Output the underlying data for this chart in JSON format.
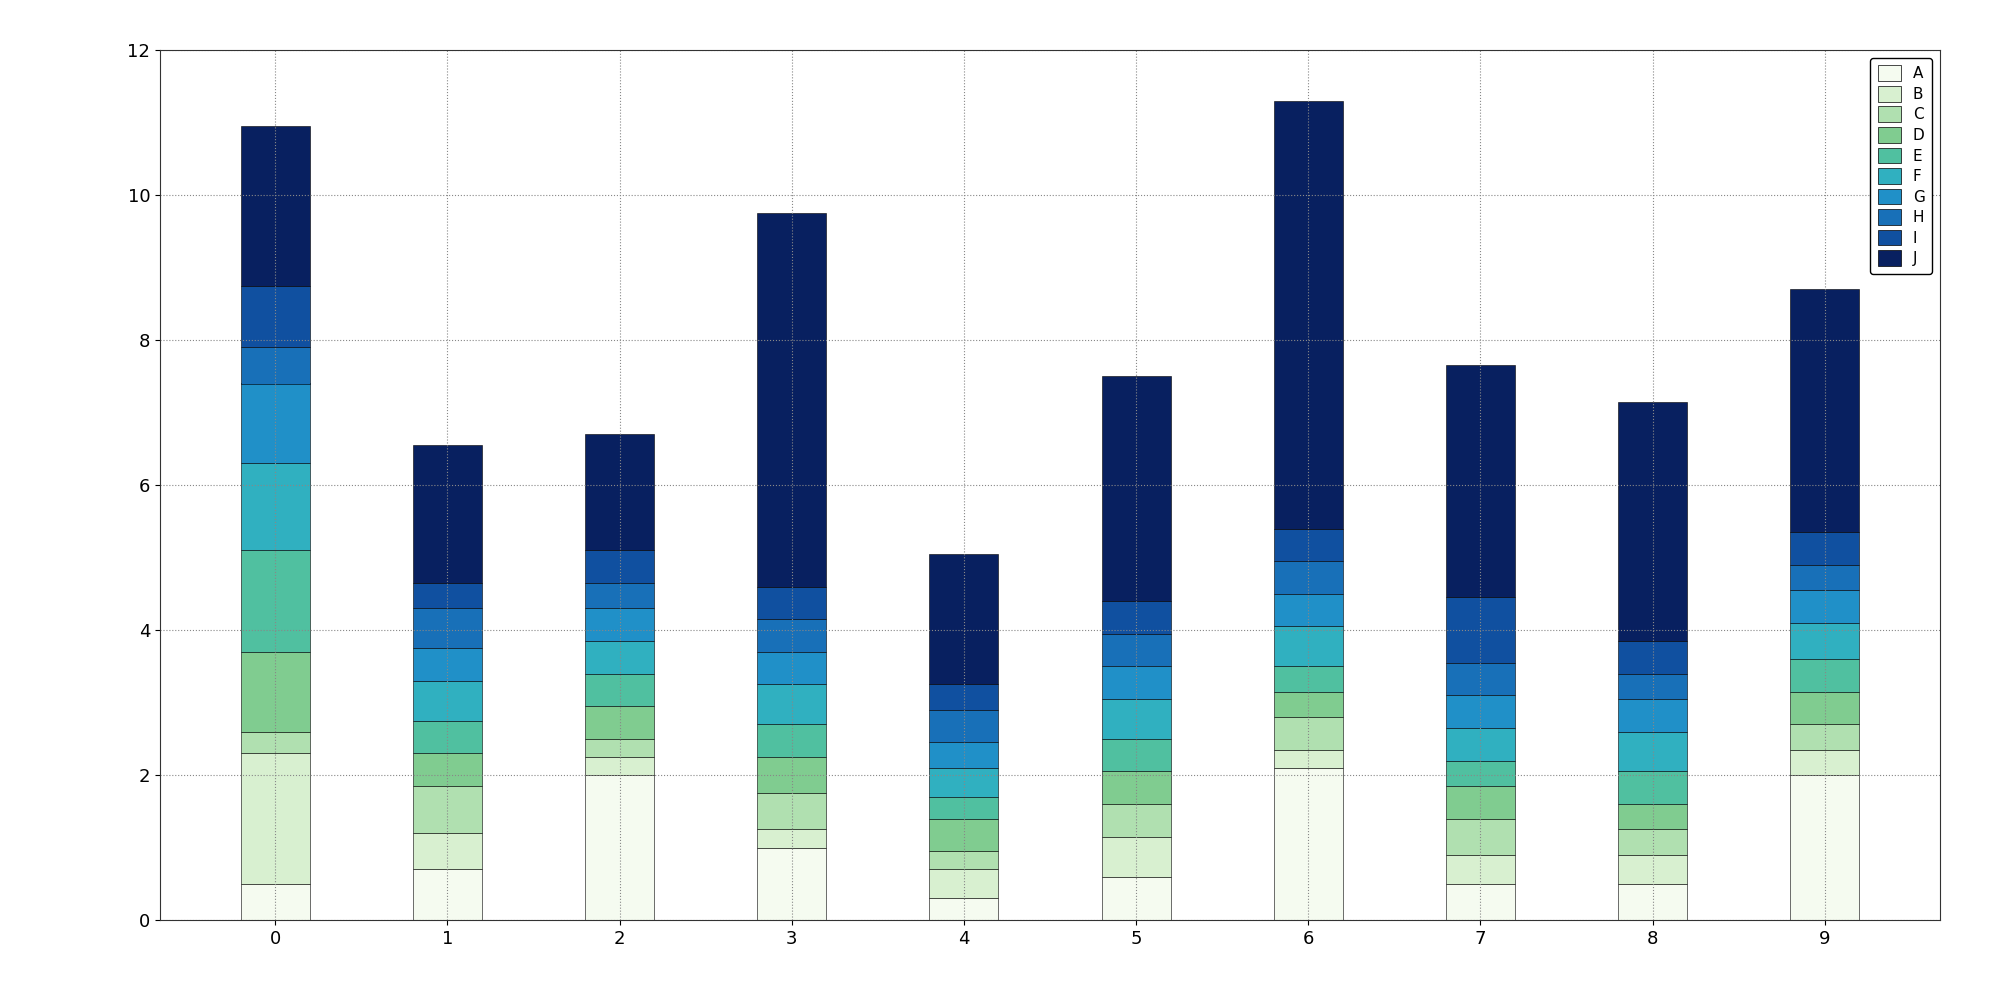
{
  "categories": [
    0,
    1,
    2,
    3,
    4,
    5,
    6,
    7,
    8,
    9
  ],
  "labels": [
    "A",
    "B",
    "C",
    "D",
    "E",
    "F",
    "G",
    "H",
    "I",
    "J"
  ],
  "colors": [
    "#f5fbf0",
    "#d8f0d0",
    "#b0e0b0",
    "#80cc90",
    "#50c0a0",
    "#30b0c0",
    "#2090c8",
    "#1870b8",
    "#1050a0",
    "#082060"
  ],
  "segment_data": [
    [
      0.5,
      0.7,
      2.0,
      1.0,
      0.3,
      0.6,
      2.1,
      0.5,
      0.5,
      2.0
    ],
    [
      1.8,
      0.5,
      0.25,
      0.25,
      0.4,
      0.55,
      0.25,
      0.4,
      0.4,
      0.35
    ],
    [
      0.3,
      0.65,
      0.25,
      0.5,
      0.25,
      0.45,
      0.45,
      0.5,
      0.35,
      0.35
    ],
    [
      1.1,
      0.45,
      0.45,
      0.5,
      0.45,
      0.45,
      0.35,
      0.45,
      0.35,
      0.45
    ],
    [
      1.4,
      0.45,
      0.45,
      0.45,
      0.3,
      0.45,
      0.35,
      0.35,
      0.45,
      0.45
    ],
    [
      1.2,
      0.55,
      0.45,
      0.55,
      0.4,
      0.55,
      0.55,
      0.45,
      0.55,
      0.5
    ],
    [
      1.1,
      0.45,
      0.45,
      0.45,
      0.35,
      0.45,
      0.45,
      0.45,
      0.45,
      0.45
    ],
    [
      0.5,
      0.55,
      0.35,
      0.45,
      0.45,
      0.45,
      0.45,
      0.45,
      0.35,
      0.35
    ],
    [
      0.85,
      0.35,
      0.45,
      0.45,
      0.35,
      0.45,
      0.45,
      0.9,
      0.45,
      0.45
    ],
    [
      2.2,
      1.9,
      1.6,
      5.15,
      1.8,
      3.1,
      5.9,
      3.2,
      3.3,
      3.35
    ]
  ],
  "ylim": [
    0,
    12
  ],
  "yticks": [
    0,
    2,
    4,
    6,
    8,
    10,
    12
  ],
  "bar_width": 0.4,
  "figure_size": [
    20.0,
    10.0
  ],
  "dpi": 100,
  "background_color": "#ffffff",
  "grid_color": "#888888",
  "legend_loc": "upper right"
}
